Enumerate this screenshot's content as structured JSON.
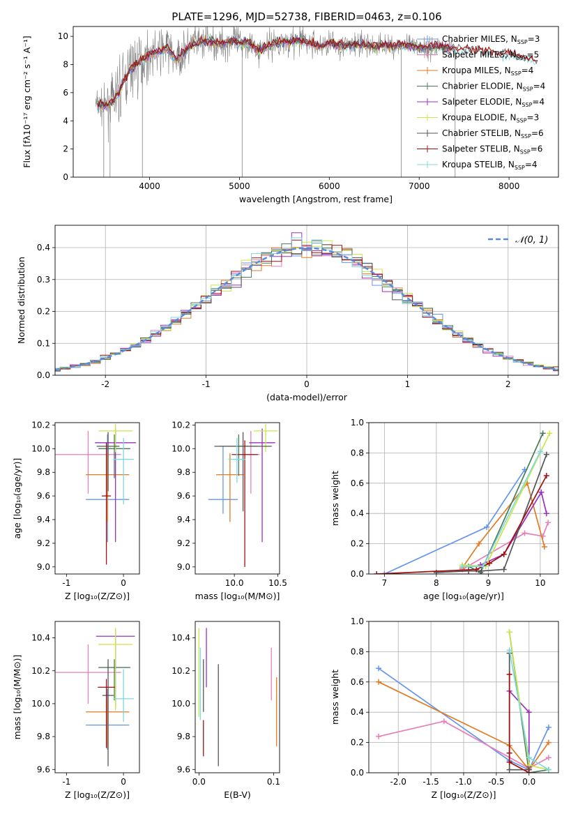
{
  "colors": {
    "Chabrier MILES": "#6495ed",
    "Salpeter MILES": "#e77fb8",
    "Kroupa MILES": "#e07b22",
    "Chabrier ELODIE": "#4a7a5a",
    "Salpeter ELODIE": "#9b30c0",
    "Kroupa ELODIE": "#c8e84a",
    "Chabrier STELIB": "#555555",
    "Salpeter STELIB": "#a01010",
    "Kroupa STELIB": "#7fd8e0"
  },
  "chart_data": [
    {
      "panel": "spectrum",
      "type": "line",
      "title": "PLATE=1296, MJD=52738, FIBERID=0463, z=0.106",
      "xlabel": "wavelength [Angstrom, rest frame]",
      "ylabel": "Flux [fλ10⁻¹⁷ erg cm⁻² s⁻¹ A⁻¹]",
      "xlim": [
        3150,
        8550
      ],
      "ylim": [
        0,
        10.7
      ],
      "xticks": [
        4000,
        5000,
        6000,
        7000,
        8000
      ],
      "yticks": [
        0,
        2,
        4,
        6,
        8,
        10
      ],
      "legend_position": "top-right",
      "legend": [
        {
          "label": "Chabrier MILES, N_SSP=3",
          "color": "#6495ed"
        },
        {
          "label": "Salpeter MILES, N_SSP=5",
          "color": "#e77fb8"
        },
        {
          "label": "Kroupa MILES, N_SSP=4",
          "color": "#e07b22"
        },
        {
          "label": "Chabrier ELODIE, N_SSP=4",
          "color": "#4a7a5a"
        },
        {
          "label": "Salpeter ELODIE, N_SSP=4",
          "color": "#9b30c0"
        },
        {
          "label": "Kroupa ELODIE, N_SSP=3",
          "color": "#c8e84a"
        },
        {
          "label": "Chabrier STELIB, N_SSP=6",
          "color": "#555555"
        },
        {
          "label": "Salpeter STELIB, N_SSP=6",
          "color": "#a01010"
        },
        {
          "label": "Kroupa STELIB, N_SSP=4",
          "color": "#7fd8e0"
        }
      ],
      "model_continuum": [
        [
          3400,
          5.2
        ],
        [
          3500,
          5.0
        ],
        [
          3600,
          5.4
        ],
        [
          3700,
          6.6
        ],
        [
          3800,
          7.8
        ],
        [
          3900,
          8.2
        ],
        [
          4000,
          8.7
        ],
        [
          4100,
          8.9
        ],
        [
          4200,
          9.2
        ],
        [
          4300,
          8.3
        ],
        [
          4400,
          9.0
        ],
        [
          4500,
          9.5
        ],
        [
          4600,
          9.6
        ],
        [
          4700,
          9.6
        ],
        [
          4800,
          9.4
        ],
        [
          4900,
          9.7
        ],
        [
          5000,
          9.5
        ],
        [
          5100,
          9.6
        ],
        [
          5200,
          9.0
        ],
        [
          5300,
          9.3
        ],
        [
          5400,
          9.5
        ],
        [
          5500,
          9.6
        ],
        [
          5600,
          9.6
        ],
        [
          5700,
          9.7
        ],
        [
          5800,
          9.5
        ],
        [
          5900,
          9.3
        ],
        [
          6000,
          9.5
        ],
        [
          6100,
          9.4
        ],
        [
          6200,
          9.3
        ],
        [
          6300,
          9.4
        ],
        [
          6400,
          9.4
        ],
        [
          6500,
          9.2
        ],
        [
          6600,
          9.4
        ],
        [
          6700,
          9.3
        ],
        [
          6800,
          9.4
        ],
        [
          6900,
          9.3
        ],
        [
          7000,
          9.2
        ],
        [
          7100,
          9.2
        ],
        [
          7200,
          9.3
        ],
        [
          7300,
          9.2
        ],
        [
          7400,
          9.1
        ],
        [
          7600,
          9.0
        ],
        [
          7800,
          8.9
        ],
        [
          8000,
          8.7
        ],
        [
          8200,
          8.4
        ],
        [
          8300,
          8.2
        ]
      ],
      "data_spread": [
        [
          3400,
          1.0
        ],
        [
          3700,
          3.0
        ],
        [
          4000,
          2.4
        ],
        [
          4500,
          1.6
        ],
        [
          5000,
          1.4
        ],
        [
          6000,
          1.2
        ],
        [
          7000,
          1.0
        ],
        [
          7400,
          0.8
        ]
      ]
    },
    {
      "panel": "residuals",
      "type": "line",
      "xlabel": "(data-model)/error",
      "ylabel": "Normed distribution",
      "xlim": [
        -2.5,
        2.5
      ],
      "ylim": [
        0,
        0.47
      ],
      "xticks": [
        -2,
        -1,
        0,
        1,
        2
      ],
      "yticks": [
        0.0,
        0.1,
        0.2,
        0.3,
        0.4
      ],
      "grid": true,
      "reference_curve": {
        "label": "𝒩(0, 1)",
        "color": "#5b8bd6",
        "style": "dashed"
      },
      "bin_width": 0.1
    },
    {
      "panel": "Z-age",
      "type": "scatter",
      "xlabel": "Z [log₁₀(Z/Z⊙)]",
      "ylabel": "age  [log₁₀(age/yr)]",
      "xlim": [
        -1.2,
        0.28
      ],
      "ylim": [
        8.94,
        10.22
      ],
      "xticks": [
        -1,
        0
      ],
      "yticks": [
        9.0,
        9.2,
        9.4,
        9.6,
        9.8,
        10.0,
        10.2
      ],
      "points": [
        {
          "model": "Chabrier MILES",
          "x": -0.28,
          "xerr": 0.38,
          "y": 9.57,
          "yerr_lo": 0.36,
          "yerr_hi": 0.55
        },
        {
          "model": "Salpeter MILES",
          "x": -0.62,
          "xerr": 0.58,
          "y": 9.95,
          "yerr_lo": 0.33,
          "yerr_hi": 0.2
        },
        {
          "model": "Kroupa MILES",
          "x": -0.28,
          "xerr": 0.38,
          "y": 9.78,
          "yerr_lo": 0.4,
          "yerr_hi": 0.18
        },
        {
          "model": "Chabrier ELODIE",
          "x": -0.16,
          "xerr": 0.28,
          "y": 10.0,
          "yerr_lo": 0.25,
          "yerr_hi": 0.12
        },
        {
          "model": "Salpeter ELODIE",
          "x": -0.14,
          "xerr": 0.36,
          "y": 10.05,
          "yerr_lo": 0.84,
          "yerr_hi": 0.12
        },
        {
          "model": "Kroupa ELODIE",
          "x": -0.14,
          "xerr": 0.3,
          "y": 10.15,
          "yerr_lo": 0.18,
          "yerr_hi": 0.06
        },
        {
          "model": "Chabrier STELIB",
          "x": -0.27,
          "xerr": 0.2,
          "y": 10.02,
          "yerr_lo": 0.38,
          "yerr_hi": 0.12
        },
        {
          "model": "Salpeter STELIB",
          "x": -0.3,
          "xerr": 0.08,
          "y": 9.6,
          "yerr_lo": 0.58,
          "yerr_hi": 0.45
        },
        {
          "model": "Kroupa STELIB",
          "x": 0.0,
          "xerr": 0.18,
          "y": 9.91,
          "yerr_lo": 0.38,
          "yerr_hi": 0.18
        }
      ]
    },
    {
      "panel": "mass-age",
      "type": "scatter",
      "xlabel": "mass [log₁₀(M/M⊙)]",
      "ylabel": "",
      "xlim": [
        9.55,
        10.52
      ],
      "ylim": [
        8.94,
        10.22
      ],
      "xticks": [
        10.0,
        10.5
      ],
      "yticks": [
        9.0,
        9.2,
        9.4,
        9.6,
        9.8,
        10.0,
        10.2
      ],
      "points": [
        {
          "model": "Chabrier MILES",
          "x": 9.87,
          "xerr": 0.17,
          "y": 9.57,
          "yerr_lo": 0.12,
          "yerr_hi": 0.45
        },
        {
          "model": "Salpeter MILES",
          "x": 10.19,
          "xerr": 0.1,
          "y": 9.95,
          "yerr_lo": 0.33,
          "yerr_hi": 0.2
        },
        {
          "model": "Kroupa MILES",
          "x": 9.95,
          "xerr": 0.16,
          "y": 9.78,
          "yerr_lo": 0.4,
          "yerr_hi": 0.18
        },
        {
          "model": "Chabrier ELODIE",
          "x": 10.05,
          "xerr": 0.22,
          "y": 10.02,
          "yerr_lo": 0.25,
          "yerr_hi": 0.1
        },
        {
          "model": "Salpeter ELODIE",
          "x": 10.32,
          "xerr": 0.15,
          "y": 10.05,
          "yerr_lo": 0.84,
          "yerr_hi": 0.12
        },
        {
          "model": "Kroupa ELODIE",
          "x": 10.36,
          "xerr": 0.14,
          "y": 10.15,
          "yerr_lo": 0.18,
          "yerr_hi": 0.06
        },
        {
          "model": "Chabrier STELIB",
          "x": 10.1,
          "xerr": 0.33,
          "y": 10.02,
          "yerr_lo": 0.55,
          "yerr_hi": 0.12
        },
        {
          "model": "Salpeter STELIB",
          "x": 10.12,
          "xerr": 0.15,
          "y": 9.95,
          "yerr_lo": 0.95,
          "yerr_hi": 0.12
        },
        {
          "model": "Kroupa STELIB",
          "x": 10.03,
          "xerr": 0.1,
          "y": 9.91,
          "yerr_lo": 0.2,
          "yerr_hi": 0.18
        }
      ]
    },
    {
      "panel": "age-weight",
      "type": "line",
      "xlabel": "age  [log₁₀(age/yr)]",
      "ylabel": "mass weight",
      "xlim": [
        6.7,
        10.35
      ],
      "ylim": [
        0,
        1.0
      ],
      "xticks": [
        7,
        8,
        9,
        10
      ],
      "yticks": [
        0.0,
        0.2,
        0.4,
        0.6,
        0.8,
        1.0
      ],
      "grid": true,
      "series": [
        {
          "model": "Chabrier MILES",
          "x": [
            7.0,
            8.97,
            9.7
          ],
          "y": [
            0.0,
            0.31,
            0.69
          ]
        },
        {
          "model": "Salpeter MILES",
          "x": [
            8.5,
            9.7,
            10.05,
            10.15
          ],
          "y": [
            0.03,
            0.27,
            0.25,
            0.34
          ]
        },
        {
          "model": "Kroupa MILES",
          "x": [
            8.5,
            8.82,
            9.75,
            10.08
          ],
          "y": [
            0.04,
            0.2,
            0.6,
            0.18
          ]
        },
        {
          "model": "Chabrier ELODIE",
          "x": [
            8.62,
            8.85,
            10.05
          ],
          "y": [
            0.05,
            0.01,
            0.93
          ]
        },
        {
          "model": "Salpeter ELODIE",
          "x": [
            8.85,
            9.3,
            10.02,
            10.12
          ],
          "y": [
            0.06,
            0.13,
            0.54,
            0.4
          ]
        },
        {
          "model": "Kroupa ELODIE",
          "x": [
            8.5,
            8.95,
            10.18
          ],
          "y": [
            0.06,
            0.05,
            0.93
          ]
        },
        {
          "model": "Chabrier STELIB",
          "x": [
            8.0,
            8.62,
            8.87,
            9.3,
            10.12
          ],
          "y": [
            0.01,
            0.02,
            0.02,
            0.03,
            0.79
          ]
        },
        {
          "model": "Salpeter STELIB",
          "x": [
            6.85,
            8.77,
            9.02,
            9.3,
            10.12
          ],
          "y": [
            0.0,
            0.03,
            0.07,
            0.13,
            0.65
          ]
        },
        {
          "model": "Kroupa STELIB",
          "x": [
            8.5,
            8.9,
            10.0
          ],
          "y": [
            0.05,
            0.05,
            0.81
          ]
        }
      ]
    },
    {
      "panel": "Z-mass",
      "type": "scatter",
      "xlabel": "Z [log₁₀(Z/Z⊙)]",
      "ylabel": "mass [log₁₀(M/M⊙)]",
      "xlim": [
        -1.2,
        0.28
      ],
      "ylim": [
        9.58,
        10.5
      ],
      "xticks": [
        -1,
        0
      ],
      "yticks": [
        9.6,
        9.8,
        10.0,
        10.2,
        10.4
      ],
      "points": [
        {
          "model": "Chabrier MILES",
          "x": -0.28,
          "xerr": 0.38,
          "y": 9.87,
          "yerr_lo": 0.15,
          "yerr_hi": 0.22
        },
        {
          "model": "Salpeter MILES",
          "x": -0.62,
          "xerr": 0.58,
          "y": 10.19,
          "yerr_lo": 0.19,
          "yerr_hi": 0.17
        },
        {
          "model": "Kroupa MILES",
          "x": -0.28,
          "xerr": 0.38,
          "y": 9.95,
          "yerr_lo": 0.21,
          "yerr_hi": 0.08
        },
        {
          "model": "Chabrier ELODIE",
          "x": -0.16,
          "xerr": 0.28,
          "y": 10.22,
          "yerr_lo": 0.2,
          "yerr_hi": 0.05
        },
        {
          "model": "Salpeter ELODIE",
          "x": -0.14,
          "xerr": 0.34,
          "y": 10.41,
          "yerr_lo": 0.43,
          "yerr_hi": 0.04
        },
        {
          "model": "Kroupa ELODIE",
          "x": -0.14,
          "xerr": 0.3,
          "y": 10.36,
          "yerr_lo": 0.4,
          "yerr_hi": 0.1
        },
        {
          "model": "Chabrier STELIB",
          "x": -0.27,
          "xerr": 0.1,
          "y": 10.05,
          "yerr_lo": 0.43,
          "yerr_hi": 0.22
        },
        {
          "model": "Salpeter STELIB",
          "x": -0.3,
          "xerr": 0.15,
          "y": 10.1,
          "yerr_lo": 0.37,
          "yerr_hi": 0.05
        },
        {
          "model": "Kroupa STELIB",
          "x": 0.0,
          "xerr": 0.18,
          "y": 10.03,
          "yerr_lo": 0.14,
          "yerr_hi": 0.18
        }
      ]
    },
    {
      "panel": "EBV-mass",
      "type": "scatter",
      "xlabel": "E(B-V)",
      "ylabel": "",
      "xlim": [
        -0.005,
        0.108
      ],
      "ylim": [
        9.58,
        10.5
      ],
      "xticks": [
        0.0,
        0.1
      ],
      "yticks": [
        9.6,
        9.8,
        10.0,
        10.2,
        10.4
      ],
      "points": [
        {
          "model": "Kroupa ELODIE",
          "x": 0.0,
          "y": 10.1,
          "yerr_lo": 0.18,
          "yerr_hi": 0.36
        },
        {
          "model": "Kroupa STELIB",
          "x": 0.002,
          "y": 10.1,
          "yerr_lo": 0.2,
          "yerr_hi": 0.24
        },
        {
          "model": "Salpeter STELIB",
          "x": 0.006,
          "y": 9.79,
          "yerr_lo": 0.11,
          "yerr_hi": 0.11
        },
        {
          "model": "Chabrier STELIB",
          "x": 0.006,
          "y": 10.05,
          "yerr_lo": 0.1,
          "yerr_hi": 0.22
        },
        {
          "model": "Salpeter ELODIE",
          "x": 0.01,
          "y": 10.3,
          "yerr_lo": 0.2,
          "yerr_hi": 0.16
        },
        {
          "model": "Chabrier STELIB",
          "x": 0.026,
          "y": 9.93,
          "yerr_lo": 0.31,
          "yerr_hi": 0.31
        },
        {
          "model": "Salpeter MILES",
          "x": 0.097,
          "y": 10.2,
          "yerr_lo": 0.18,
          "yerr_hi": 0.14
        },
        {
          "model": "Kroupa MILES",
          "x": 0.104,
          "y": 9.95,
          "yerr_lo": 0.21,
          "yerr_hi": 0.21
        }
      ]
    },
    {
      "panel": "Z-weight",
      "type": "line",
      "xlabel": "Z [log₁₀(Z/Z⊙)]",
      "ylabel": "mass weight",
      "xlim": [
        -2.45,
        0.45
      ],
      "ylim": [
        0,
        1.0
      ],
      "xticks": [
        -2.0,
        -1.5,
        -1.0,
        -0.5,
        0.0
      ],
      "yticks": [
        0.0,
        0.2,
        0.4,
        0.6,
        0.8,
        1.0
      ],
      "grid": true,
      "series": [
        {
          "model": "Chabrier MILES",
          "x": [
            -2.3,
            -0.3,
            0.0,
            0.3
          ],
          "y": [
            0.69,
            0.08,
            0.02,
            0.3
          ]
        },
        {
          "model": "Salpeter MILES",
          "x": [
            -2.3,
            -1.3,
            0.0,
            0.3
          ],
          "y": [
            0.24,
            0.34,
            0.03,
            0.1
          ]
        },
        {
          "model": "Kroupa MILES",
          "x": [
            -2.3,
            -0.3,
            0.0,
            0.3
          ],
          "y": [
            0.6,
            0.18,
            0.02,
            0.2
          ]
        },
        {
          "model": "Chabrier ELODIE",
          "x": [
            -0.3,
            0.0,
            0.3
          ],
          "y": [
            0.93,
            0.0,
            0.02
          ]
        },
        {
          "model": "Salpeter ELODIE",
          "x": [
            -0.3,
            0.0,
            0.0
          ],
          "y": [
            0.54,
            0.4,
            0.04
          ]
        },
        {
          "model": "Kroupa ELODIE",
          "x": [
            -0.3,
            0.0,
            0.3
          ],
          "y": [
            0.93,
            0.05,
            0.02
          ]
        },
        {
          "model": "Chabrier STELIB",
          "x": [
            -0.3,
            -0.3,
            0.0
          ],
          "y": [
            0.79,
            0.02,
            0.02
          ]
        },
        {
          "model": "Salpeter STELIB",
          "x": [
            -0.3,
            -0.3,
            -0.3,
            0.0
          ],
          "y": [
            0.65,
            0.13,
            0.07,
            0.0
          ]
        },
        {
          "model": "Kroupa STELIB",
          "x": [
            -0.3,
            0.0,
            0.3
          ],
          "y": [
            0.81,
            0.1,
            0.02
          ]
        }
      ]
    }
  ]
}
